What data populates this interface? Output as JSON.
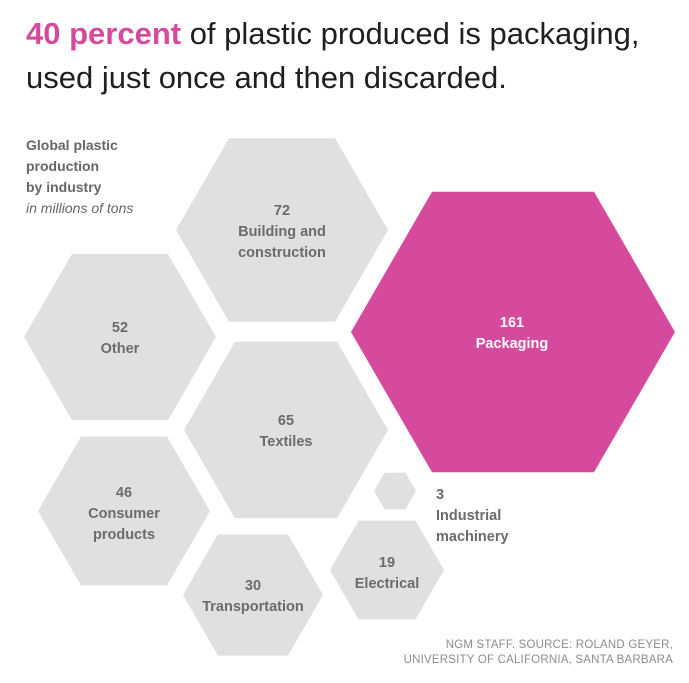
{
  "headline": {
    "highlight": "40 percent",
    "line1_rest": " of plastic produced is packaging,",
    "line2": "used just once and then discarded."
  },
  "chart_data": {
    "type": "bubble",
    "title": "Global plastic production by industry",
    "title_lines": [
      "Global plastic",
      "production",
      "by industry"
    ],
    "unit": "in millions of tons",
    "categories": [
      "Packaging",
      "Building and construction",
      "Textiles",
      "Other",
      "Consumer products",
      "Transportation",
      "Electrical",
      "Industrial machinery"
    ],
    "values": [
      161,
      72,
      65,
      52,
      46,
      30,
      19,
      3
    ],
    "items": [
      {
        "value": "161",
        "label_lines": [
          "Packaging"
        ],
        "highlight": true
      },
      {
        "value": "72",
        "label_lines": [
          "Building and",
          "construction"
        ],
        "highlight": false
      },
      {
        "value": "52",
        "label_lines": [
          "Other"
        ],
        "highlight": false
      },
      {
        "value": "65",
        "label_lines": [
          "Textiles"
        ],
        "highlight": false
      },
      {
        "value": "46",
        "label_lines": [
          "Consumer",
          "products"
        ],
        "highlight": false
      },
      {
        "value": "30",
        "label_lines": [
          "Transportation"
        ],
        "highlight": false
      },
      {
        "value": "19",
        "label_lines": [
          "Electrical"
        ],
        "highlight": false
      },
      {
        "value": "3",
        "label_lines": [
          "Industrial",
          "machinery"
        ],
        "highlight": false
      }
    ],
    "colors": {
      "highlight": "#d64a9d",
      "default": "#e0e0e0",
      "label": "#6b6b6b",
      "highlight_label": "#ffffff"
    }
  },
  "credit": {
    "line1": "NGM STAFF. SOURCE: ROLAND GEYER,",
    "line2": "UNIVERSITY OF CALIFORNIA, SANTA BARBARA"
  }
}
